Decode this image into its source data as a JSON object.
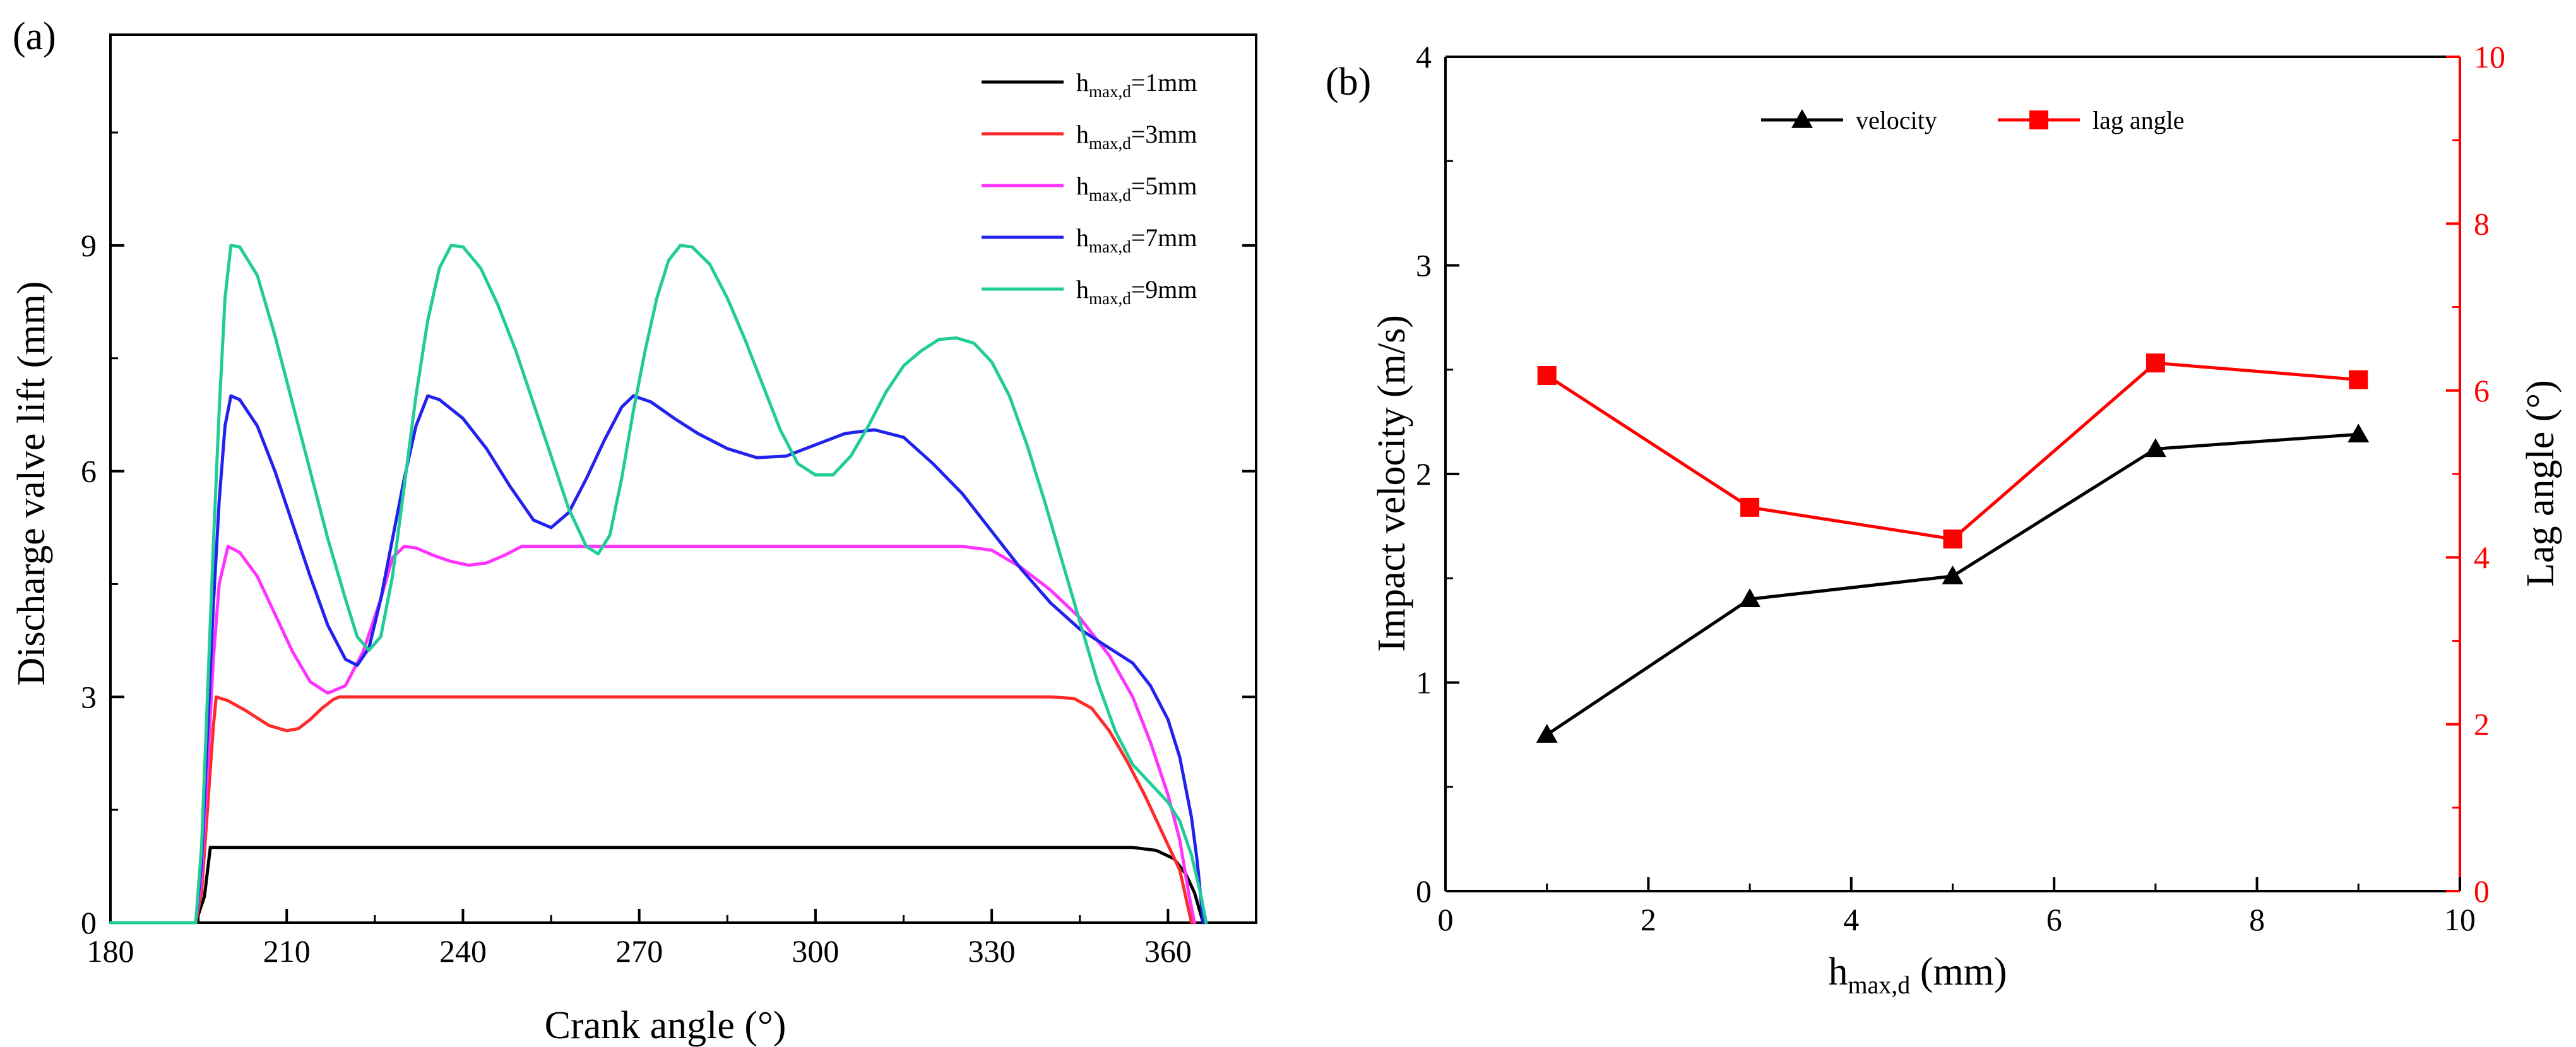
{
  "chart_data": [
    {
      "panel_label": "(a)",
      "type": "line",
      "xlabel": "Crank angle (°)",
      "ylabel": "Discharge valve lift (mm)",
      "xlim": [
        180,
        375
      ],
      "ylim": [
        0,
        11.8
      ],
      "xticks": [
        180,
        210,
        240,
        270,
        300,
        330,
        360
      ],
      "yticks": [
        0,
        3,
        6,
        9
      ],
      "legend_position": "top-right",
      "series": [
        {
          "name": "hmax,d=1mm",
          "label_main": "h",
          "label_sub": "max,d",
          "label_tail": "=1mm",
          "color": "#000000",
          "points": [
            [
              180,
              0
            ],
            [
              194.5,
              0
            ],
            [
              196,
              0.35
            ],
            [
              197,
              1
            ],
            [
              350,
              1
            ],
            [
              354,
              1
            ],
            [
              358,
              0.96
            ],
            [
              361,
              0.85
            ],
            [
              363,
              0.65
            ],
            [
              364.5,
              0.4
            ],
            [
              366,
              0
            ]
          ]
        },
        {
          "name": "hmax,d=3mm",
          "label_main": "h",
          "label_sub": "max,d",
          "label_tail": "=3mm",
          "color": "#ff2a2a",
          "points": [
            [
              180,
              0
            ],
            [
              194.5,
              0
            ],
            [
              195.5,
              0.4
            ],
            [
              196.5,
              1.5
            ],
            [
              197.5,
              2.6
            ],
            [
              198,
              3
            ],
            [
              200,
              2.95
            ],
            [
              203,
              2.82
            ],
            [
              207,
              2.62
            ],
            [
              210,
              2.55
            ],
            [
              212,
              2.58
            ],
            [
              214,
              2.7
            ],
            [
              216,
              2.85
            ],
            [
              218,
              2.97
            ],
            [
              219,
              3
            ],
            [
              340,
              3
            ],
            [
              344,
              2.98
            ],
            [
              347,
              2.85
            ],
            [
              350,
              2.55
            ],
            [
              353,
              2.15
            ],
            [
              356,
              1.7
            ],
            [
              359,
              1.2
            ],
            [
              362,
              0.7
            ],
            [
              364,
              0
            ]
          ]
        },
        {
          "name": "hmax,d=5mm",
          "label_main": "h",
          "label_sub": "max,d",
          "label_tail": "=5mm",
          "color": "#ff33ff",
          "points": [
            [
              180,
              0
            ],
            [
              194.5,
              0
            ],
            [
              195.5,
              0.6
            ],
            [
              196.5,
              2
            ],
            [
              197.5,
              3.5
            ],
            [
              198.5,
              4.5
            ],
            [
              200,
              5
            ],
            [
              202,
              4.92
            ],
            [
              205,
              4.6
            ],
            [
              208,
              4.1
            ],
            [
              211,
              3.6
            ],
            [
              214,
              3.2
            ],
            [
              217,
              3.05
            ],
            [
              220,
              3.15
            ],
            [
              223,
              3.6
            ],
            [
              226,
              4.3
            ],
            [
              228,
              4.85
            ],
            [
              230,
              5
            ],
            [
              232,
              4.98
            ],
            [
              235,
              4.88
            ],
            [
              238,
              4.8
            ],
            [
              241,
              4.75
            ],
            [
              244,
              4.78
            ],
            [
              247,
              4.88
            ],
            [
              250,
              5
            ],
            [
              325,
              5
            ],
            [
              330,
              4.95
            ],
            [
              335,
              4.72
            ],
            [
              340,
              4.42
            ],
            [
              345,
              4.05
            ],
            [
              350,
              3.55
            ],
            [
              354,
              3
            ],
            [
              357,
              2.4
            ],
            [
              360,
              1.7
            ],
            [
              362,
              1.1
            ],
            [
              363.5,
              0.4
            ],
            [
              364.5,
              0
            ]
          ]
        },
        {
          "name": "hmax,d=7mm",
          "label_main": "h",
          "label_sub": "max,d",
          "label_tail": "=7mm",
          "color": "#2222ee",
          "points": [
            [
              180,
              0
            ],
            [
              194.5,
              0
            ],
            [
              195.5,
              0.8
            ],
            [
              196.5,
              2.5
            ],
            [
              197.5,
              4.2
            ],
            [
              198.5,
              5.6
            ],
            [
              199.5,
              6.6
            ],
            [
              200.5,
              7
            ],
            [
              202,
              6.95
            ],
            [
              205,
              6.6
            ],
            [
              208,
              6
            ],
            [
              211,
              5.3
            ],
            [
              214,
              4.6
            ],
            [
              217,
              3.95
            ],
            [
              220,
              3.5
            ],
            [
              222,
              3.42
            ],
            [
              224,
              3.65
            ],
            [
              226,
              4.3
            ],
            [
              228,
              5.1
            ],
            [
              230,
              5.9
            ],
            [
              232,
              6.6
            ],
            [
              234,
              7
            ],
            [
              236,
              6.95
            ],
            [
              240,
              6.7
            ],
            [
              244,
              6.3
            ],
            [
              248,
              5.8
            ],
            [
              252,
              5.35
            ],
            [
              255,
              5.25
            ],
            [
              258,
              5.45
            ],
            [
              261,
              5.9
            ],
            [
              264,
              6.4
            ],
            [
              267,
              6.85
            ],
            [
              269,
              7
            ],
            [
              272,
              6.92
            ],
            [
              276,
              6.7
            ],
            [
              280,
              6.5
            ],
            [
              285,
              6.3
            ],
            [
              290,
              6.18
            ],
            [
              295,
              6.2
            ],
            [
              300,
              6.35
            ],
            [
              305,
              6.5
            ],
            [
              310,
              6.55
            ],
            [
              315,
              6.45
            ],
            [
              320,
              6.1
            ],
            [
              325,
              5.7
            ],
            [
              330,
              5.2
            ],
            [
              335,
              4.7
            ],
            [
              340,
              4.25
            ],
            [
              345,
              3.9
            ],
            [
              350,
              3.65
            ],
            [
              354,
              3.45
            ],
            [
              357,
              3.15
            ],
            [
              360,
              2.7
            ],
            [
              362,
              2.2
            ],
            [
              364,
              1.4
            ],
            [
              365,
              0.8
            ],
            [
              366,
              0
            ]
          ]
        },
        {
          "name": "hmax,d=9mm",
          "label_main": "h",
          "label_sub": "max,d",
          "label_tail": "=9mm",
          "color": "#22cc99",
          "points": [
            [
              180,
              0
            ],
            [
              194.5,
              0
            ],
            [
              195.5,
              1
            ],
            [
              196.5,
              3
            ],
            [
              197.5,
              5
            ],
            [
              198.5,
              6.8
            ],
            [
              199.5,
              8.3
            ],
            [
              200.5,
              9
            ],
            [
              202,
              8.98
            ],
            [
              205,
              8.6
            ],
            [
              208,
              7.8
            ],
            [
              211,
              6.9
            ],
            [
              214,
              6
            ],
            [
              217,
              5.1
            ],
            [
              220,
              4.3
            ],
            [
              222,
              3.8
            ],
            [
              224,
              3.62
            ],
            [
              226,
              3.8
            ],
            [
              228,
              4.6
            ],
            [
              230,
              5.8
            ],
            [
              232,
              7
            ],
            [
              234,
              8
            ],
            [
              236,
              8.7
            ],
            [
              238,
              9
            ],
            [
              240,
              8.98
            ],
            [
              243,
              8.7
            ],
            [
              246,
              8.2
            ],
            [
              249,
              7.6
            ],
            [
              252,
              6.9
            ],
            [
              255,
              6.2
            ],
            [
              258,
              5.5
            ],
            [
              261,
              5
            ],
            [
              263,
              4.9
            ],
            [
              265,
              5.15
            ],
            [
              267,
              5.9
            ],
            [
              269,
              6.8
            ],
            [
              271,
              7.6
            ],
            [
              273,
              8.3
            ],
            [
              275,
              8.8
            ],
            [
              277,
              9
            ],
            [
              279,
              8.98
            ],
            [
              282,
              8.75
            ],
            [
              285,
              8.3
            ],
            [
              288,
              7.75
            ],
            [
              291,
              7.15
            ],
            [
              294,
              6.55
            ],
            [
              297,
              6.1
            ],
            [
              300,
              5.95
            ],
            [
              303,
              5.95
            ],
            [
              306,
              6.2
            ],
            [
              309,
              6.6
            ],
            [
              312,
              7.05
            ],
            [
              315,
              7.4
            ],
            [
              318,
              7.6
            ],
            [
              321,
              7.75
            ],
            [
              324,
              7.77
            ],
            [
              327,
              7.7
            ],
            [
              330,
              7.45
            ],
            [
              333,
              7
            ],
            [
              336,
              6.35
            ],
            [
              339,
              5.6
            ],
            [
              342,
              4.8
            ],
            [
              345,
              4
            ],
            [
              348,
              3.2
            ],
            [
              351,
              2.55
            ],
            [
              354,
              2.1
            ],
            [
              357,
              1.85
            ],
            [
              360,
              1.6
            ],
            [
              362,
              1.35
            ],
            [
              364,
              0.9
            ],
            [
              365.5,
              0.4
            ],
            [
              366.5,
              0
            ]
          ]
        }
      ]
    },
    {
      "panel_label": "(b)",
      "type": "line",
      "xlabel_main": "h",
      "xlabel_sub": "max,d",
      "xlabel_tail": " (mm)",
      "ylabel": "Impact velocity (m/s)",
      "y2label": "Lag angle (°)",
      "xlim": [
        0,
        10
      ],
      "ylim": [
        0,
        4
      ],
      "y2lim": [
        0,
        10
      ],
      "xticks": [
        0,
        2,
        4,
        6,
        8,
        10
      ],
      "yticks": [
        0,
        1,
        2,
        3,
        4
      ],
      "y2ticks": [
        0,
        2,
        4,
        6,
        8,
        10
      ],
      "legend_position": "top",
      "x": [
        1,
        3,
        5,
        7,
        9
      ],
      "series": [
        {
          "name": "velocity",
          "axis": "left",
          "marker": "triangle",
          "color": "#000000",
          "values": [
            0.75,
            1.4,
            1.51,
            2.12,
            2.19
          ]
        },
        {
          "name": "lag angle",
          "axis": "right",
          "marker": "square",
          "color": "#ff0000",
          "values": [
            6.18,
            4.6,
            4.22,
            6.33,
            6.13
          ]
        }
      ]
    }
  ]
}
